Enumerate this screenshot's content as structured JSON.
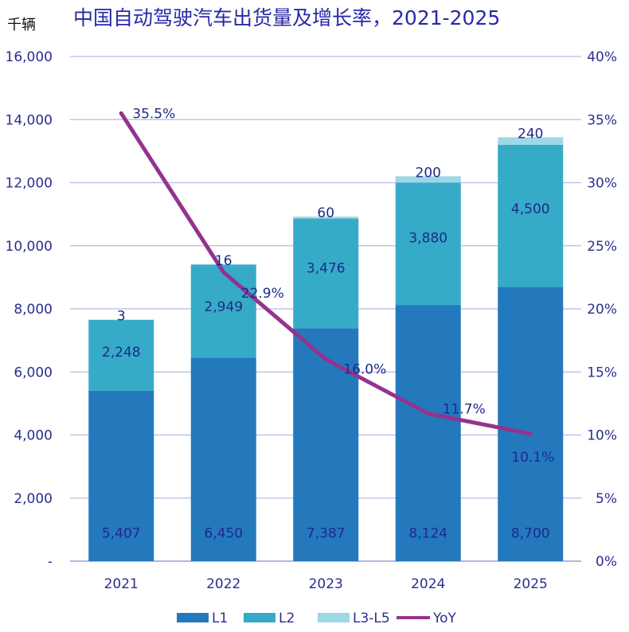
{
  "chart_data": {
    "type": "bar",
    "title": "中国自动驾驶汽车出货量及增长率，2021-2025",
    "unit_label": "千辆",
    "categories": [
      "2021",
      "2022",
      "2023",
      "2024",
      "2025"
    ],
    "series": [
      {
        "name": "L1",
        "values": [
          5407,
          6450,
          7387,
          8124,
          8700
        ],
        "color": "#2479bd",
        "labels": [
          "5,407",
          "6,450",
          "7,387",
          "8,124",
          "8,700"
        ]
      },
      {
        "name": "L2",
        "values": [
          2248,
          2949,
          3476,
          3880,
          4500
        ],
        "color": "#35abc8",
        "labels": [
          "2,248",
          "2,949",
          "3,476",
          "3,880",
          "4,500"
        ]
      },
      {
        "name": "L3-L5",
        "values": [
          3,
          16,
          60,
          200,
          240
        ],
        "color": "#9ed8e6",
        "labels": [
          "3",
          "16",
          "60",
          "200",
          "240"
        ]
      }
    ],
    "line": {
      "name": "YoY",
      "values": [
        35.5,
        22.9,
        16.0,
        11.7,
        10.1
      ],
      "color": "#94338f",
      "labels": [
        "35.5%",
        "22.9%",
        "16.0%",
        "11.7%",
        "10.1%"
      ]
    },
    "ylim": [
      0,
      16000
    ],
    "y_ticks": [
      "-",
      "2,000",
      "4,000",
      "6,000",
      "8,000",
      "10,000",
      "12,000",
      "14,000",
      "16,000"
    ],
    "y2lim": [
      0,
      40
    ],
    "y2_ticks": [
      "0%",
      "5%",
      "10%",
      "15%",
      "20%",
      "25%",
      "30%",
      "35%",
      "40%"
    ],
    "grid": true,
    "legend_position": "bottom"
  }
}
